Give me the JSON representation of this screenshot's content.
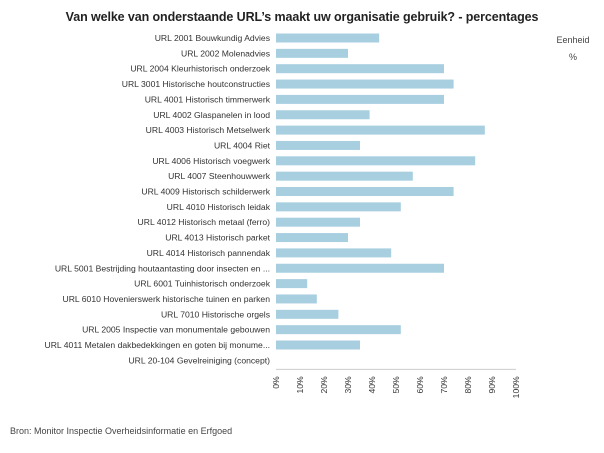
{
  "title": "Van welke van onderstaande URL’s maakt uw organisatie gebruik? - percentages",
  "unit_box": {
    "label": "Eenheid",
    "value": "%"
  },
  "source": "Bron: Monitor Inspectie Overheidsinformatie en Erfgoed",
  "colors": {
    "bar": "#a8cfe0",
    "axis": "#cccccc",
    "text": "#333333"
  },
  "chart_data": {
    "type": "bar",
    "orientation": "horizontal",
    "categories": [
      "URL 2001 Bouwkundig Advies",
      "URL 2002 Molenadvies",
      "URL 2004 Kleurhistorisch onderzoek",
      "URL 3001 Historische houtconstructies",
      "URL 4001 Historisch timmerwerk",
      "URL 4002 Glaspanelen in lood",
      "URL 4003 Historisch Metselwerk",
      "URL 4004 Riet",
      "URL 4006 Historisch voegwerk",
      "URL 4007 Steenhouwwerk",
      "URL 4009 Historisch schilderwerk",
      "URL 4010 Historisch leidak",
      "URL 4012 Historisch metaal (ferro)",
      "URL 4013 Historisch parket",
      "URL 4014 Historisch pannendak",
      "URL 5001 Bestrijding houtaantasting door insecten en ...",
      "URL 6001 Tuinhistorisch onderzoek",
      "URL 6010 Hovenierswerk historische tuinen en parken",
      "URL 7010 Historische orgels",
      "URL 2005 Inspectie van monumentale gebouwen",
      "URL 4011 Metalen dakbedekkingen en goten bij monume...",
      "URL 20-104 Gevelreiniging (concept)"
    ],
    "values": [
      43,
      30,
      70,
      74,
      70,
      39,
      87,
      35,
      83,
      57,
      74,
      52,
      35,
      30,
      48,
      70,
      13,
      17,
      26,
      52,
      35,
      0
    ],
    "xlim": [
      0,
      100
    ],
    "xticks": [
      "0%",
      "10%",
      "20%",
      "30%",
      "40%",
      "50%",
      "60%",
      "70%",
      "80%",
      "90%",
      "100%"
    ],
    "xlabel": "",
    "ylabel": "",
    "grid": false,
    "legend": "none"
  }
}
